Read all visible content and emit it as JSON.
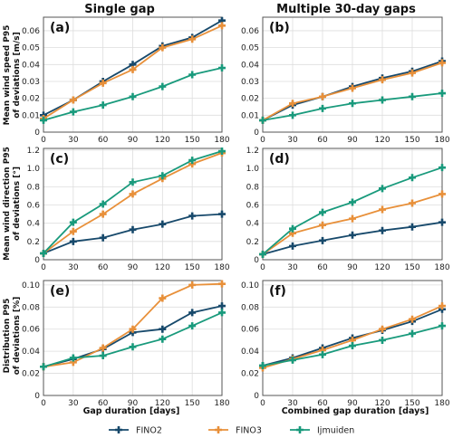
{
  "figure": {
    "column_titles": [
      "Single gap",
      "Multiple 30-day gaps"
    ],
    "row_labels": [
      [
        "Mean wind speed P95",
        "of deviations [m/s]"
      ],
      [
        "Mean wind direction P95",
        "of deviations [°]"
      ],
      [
        "Distribution P95",
        "of deviations [%]"
      ]
    ],
    "x_labels": [
      "Gap duration [days]",
      "Combined gap duration [days]"
    ]
  },
  "colors": {
    "FINO2": "#17496b",
    "FINO3": "#e8903a",
    "Ijmuiden": "#199a7c"
  },
  "legend": [
    "FINO2",
    "FINO3",
    "Ijmuiden"
  ],
  "chart_data": [
    {
      "type": "line",
      "label": "(a)",
      "x": [
        0,
        30,
        60,
        90,
        120,
        150,
        180
      ],
      "xticks": [
        0,
        30,
        60,
        90,
        120,
        150,
        180
      ],
      "ylim": [
        0,
        0.068
      ],
      "yticks": [
        0,
        0.01,
        0.02,
        0.03,
        0.04,
        0.05,
        0.06
      ],
      "ytick_labels": [
        "0",
        "0.01",
        "0.02",
        "0.03",
        "0.04",
        "0.05",
        "0.06"
      ],
      "series": [
        {
          "name": "FINO2",
          "values": [
            0.01,
            0.019,
            0.03,
            0.04,
            0.051,
            0.056,
            0.066
          ]
        },
        {
          "name": "FINO3",
          "values": [
            0.008,
            0.019,
            0.029,
            0.037,
            0.05,
            0.055,
            0.063
          ]
        },
        {
          "name": "Ijmuiden",
          "values": [
            0.007,
            0.012,
            0.016,
            0.021,
            0.027,
            0.034,
            0.038
          ]
        }
      ]
    },
    {
      "type": "line",
      "label": "(b)",
      "x": [
        0,
        30,
        60,
        90,
        120,
        150,
        180
      ],
      "xticks": [
        0,
        30,
        60,
        90,
        120,
        150,
        180
      ],
      "ylim": [
        0,
        0.068
      ],
      "yticks": [
        0,
        0.01,
        0.02,
        0.03,
        0.04,
        0.05,
        0.06
      ],
      "ytick_labels": [
        "0",
        "0.01",
        "0.02",
        "0.03",
        "0.04",
        "0.05",
        "0.06"
      ],
      "series": [
        {
          "name": "FINO2",
          "values": [
            0.007,
            0.016,
            0.021,
            0.027,
            0.032,
            0.036,
            0.042
          ]
        },
        {
          "name": "FINO3",
          "values": [
            0.007,
            0.017,
            0.021,
            0.026,
            0.031,
            0.035,
            0.041
          ]
        },
        {
          "name": "Ijmuiden",
          "values": [
            0.007,
            0.01,
            0.014,
            0.017,
            0.019,
            0.021,
            0.023
          ]
        }
      ]
    },
    {
      "type": "line",
      "label": "(c)",
      "x": [
        0,
        30,
        60,
        90,
        120,
        150,
        180
      ],
      "xticks": [
        0,
        30,
        60,
        90,
        120,
        150,
        180
      ],
      "ylim": [
        0,
        1.22
      ],
      "yticks": [
        0,
        0.2,
        0.4,
        0.6,
        0.8,
        1.0,
        1.2
      ],
      "ytick_labels": [
        "0",
        "0.2",
        "0.4",
        "0.6",
        "0.8",
        "1.0",
        "1.2"
      ],
      "series": [
        {
          "name": "FINO2",
          "values": [
            0.07,
            0.2,
            0.24,
            0.33,
            0.39,
            0.48,
            0.5
          ]
        },
        {
          "name": "FINO3",
          "values": [
            0.07,
            0.31,
            0.5,
            0.72,
            0.89,
            1.05,
            1.17
          ]
        },
        {
          "name": "Ijmuiden",
          "values": [
            0.07,
            0.41,
            0.61,
            0.85,
            0.92,
            1.09,
            1.19
          ]
        }
      ]
    },
    {
      "type": "line",
      "label": "(d)",
      "x": [
        0,
        30,
        60,
        90,
        120,
        150,
        180
      ],
      "xticks": [
        0,
        30,
        60,
        90,
        120,
        150,
        180
      ],
      "ylim": [
        0,
        1.22
      ],
      "yticks": [
        0,
        0.2,
        0.4,
        0.6,
        0.8,
        1.0,
        1.2
      ],
      "ytick_labels": [
        "0",
        "0.2",
        "0.4",
        "0.6",
        "0.8",
        "1.0",
        "1.2"
      ],
      "series": [
        {
          "name": "FINO2",
          "values": [
            0.06,
            0.15,
            0.21,
            0.27,
            0.32,
            0.36,
            0.41
          ]
        },
        {
          "name": "FINO3",
          "values": [
            0.06,
            0.29,
            0.38,
            0.45,
            0.55,
            0.62,
            0.72
          ]
        },
        {
          "name": "Ijmuiden",
          "values": [
            0.06,
            0.34,
            0.52,
            0.63,
            0.78,
            0.9,
            1.01
          ]
        }
      ]
    },
    {
      "type": "line",
      "label": "(e)",
      "x": [
        0,
        30,
        60,
        90,
        120,
        150,
        180
      ],
      "xticks": [
        0,
        30,
        60,
        90,
        120,
        150,
        180
      ],
      "ylim": [
        0,
        0.104
      ],
      "yticks": [
        0,
        0.02,
        0.04,
        0.06,
        0.08,
        0.1
      ],
      "ytick_labels": [
        "0",
        "0.02",
        "0.04",
        "0.06",
        "0.08",
        "0.10"
      ],
      "series": [
        {
          "name": "FINO2",
          "values": [
            0.026,
            0.033,
            0.042,
            0.057,
            0.06,
            0.075,
            0.081
          ]
        },
        {
          "name": "FINO3",
          "values": [
            0.026,
            0.03,
            0.043,
            0.06,
            0.088,
            0.1,
            0.101
          ]
        },
        {
          "name": "Ijmuiden",
          "values": [
            0.026,
            0.034,
            0.036,
            0.044,
            0.051,
            0.063,
            0.075
          ]
        }
      ]
    },
    {
      "type": "line",
      "label": "(f)",
      "x": [
        0,
        30,
        60,
        90,
        120,
        150,
        180
      ],
      "xticks": [
        0,
        30,
        60,
        90,
        120,
        150,
        180
      ],
      "ylim": [
        0,
        0.104
      ],
      "yticks": [
        0,
        0.02,
        0.04,
        0.06,
        0.08,
        0.1
      ],
      "ytick_labels": [
        "0",
        "0.02",
        "0.04",
        "0.06",
        "0.08",
        "0.10"
      ],
      "series": [
        {
          "name": "FINO2",
          "values": [
            0.027,
            0.034,
            0.043,
            0.052,
            0.059,
            0.067,
            0.078
          ]
        },
        {
          "name": "FINO3",
          "values": [
            0.025,
            0.033,
            0.041,
            0.05,
            0.06,
            0.069,
            0.081
          ]
        },
        {
          "name": "Ijmuiden",
          "values": [
            0.027,
            0.032,
            0.037,
            0.045,
            0.05,
            0.056,
            0.063
          ]
        }
      ]
    }
  ]
}
